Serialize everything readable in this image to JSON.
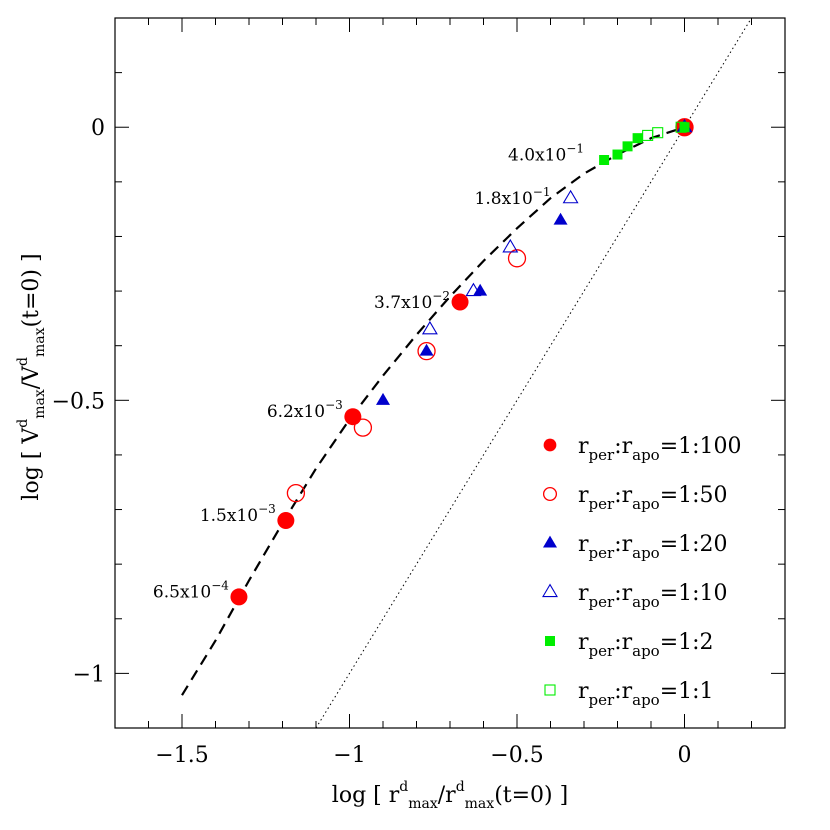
{
  "chart_data": {
    "type": "scatter",
    "x_axis": {
      "label_parts": [
        "log [ r",
        "d",
        "max",
        "/r",
        "d",
        "max",
        "(t=0) ]"
      ],
      "range": [
        -1.7,
        0.3
      ],
      "ticks": [
        -1.5,
        -1,
        -0.5,
        0
      ],
      "tick_labels": [
        "−1.5",
        "−1",
        "−0.5",
        "0"
      ],
      "minor_step": 0.1
    },
    "y_axis": {
      "label_parts": [
        "log [ V",
        "d",
        "max",
        "/V",
        "d",
        "max",
        "(t=0) ]"
      ],
      "range": [
        -1.1,
        0.2
      ],
      "ticks": [
        0,
        -0.5,
        -1
      ],
      "tick_labels": [
        "0",
        "−0.5",
        "−1"
      ],
      "minor_step": 0.1
    },
    "grid": false,
    "legend_position": "bottom-right",
    "series": [
      {
        "name": "r_per:r_apo=1:100",
        "legend_parts": [
          "r",
          "per",
          ":r",
          "apo",
          "=1:100"
        ],
        "marker": "circle",
        "filled": true,
        "color": "#ff0000",
        "x": [
          -1.33,
          -1.19,
          -0.99,
          -0.67,
          0.0
        ],
        "y": [
          -0.86,
          -0.72,
          -0.53,
          -0.32,
          0.0
        ]
      },
      {
        "name": "r_per:r_apo=1:50",
        "legend_parts": [
          "r",
          "per",
          ":r",
          "apo",
          "=1:50"
        ],
        "marker": "circle",
        "filled": false,
        "color": "#ff0000",
        "x": [
          -1.16,
          -0.96,
          -0.77,
          -0.5,
          0.0
        ],
        "y": [
          -0.67,
          -0.55,
          -0.41,
          -0.24,
          0.0
        ]
      },
      {
        "name": "r_per:r_apo=1:20",
        "legend_parts": [
          "r",
          "per",
          ":r",
          "apo",
          "=1:20"
        ],
        "marker": "triangle",
        "filled": true,
        "color": "#0000cc",
        "x": [
          -0.9,
          -0.77,
          -0.61,
          -0.37,
          0.0
        ],
        "y": [
          -0.5,
          -0.41,
          -0.3,
          -0.17,
          0.0
        ]
      },
      {
        "name": "r_per:r_apo=1:10",
        "legend_parts": [
          "r",
          "per",
          ":r",
          "apo",
          "=1:10"
        ],
        "marker": "triangle",
        "filled": false,
        "color": "#0000cc",
        "x": [
          -0.76,
          -0.63,
          -0.52,
          -0.34,
          0.0
        ],
        "y": [
          -0.37,
          -0.3,
          -0.22,
          -0.13,
          0.0
        ]
      },
      {
        "name": "r_per:r_apo=1:2",
        "legend_parts": [
          "r",
          "per",
          ":r",
          "apo",
          "=1:2"
        ],
        "marker": "square",
        "filled": true,
        "color": "#00ee00",
        "x": [
          -0.24,
          -0.2,
          -0.17,
          -0.14,
          0.0
        ],
        "y": [
          -0.06,
          -0.05,
          -0.035,
          -0.02,
          0.0
        ]
      },
      {
        "name": "r_per:r_apo=1:1",
        "legend_parts": [
          "r",
          "per",
          ":r",
          "apo",
          "=1:1"
        ],
        "marker": "square",
        "filled": false,
        "color": "#00ee00",
        "x": [
          -0.11,
          -0.08,
          -0.01
        ],
        "y": [
          -0.015,
          -0.01,
          0.0
        ]
      }
    ],
    "fit_curve": {
      "style": "dashed",
      "x": [
        -1.5,
        -1.4,
        -1.3,
        -1.2,
        -1.1,
        -1.0,
        -0.9,
        -0.8,
        -0.7,
        -0.6,
        -0.5,
        -0.4,
        -0.3,
        -0.2,
        -0.1,
        0.0
      ],
      "y": [
        -1.04,
        -0.94,
        -0.83,
        -0.725,
        -0.625,
        -0.535,
        -0.455,
        -0.38,
        -0.31,
        -0.245,
        -0.185,
        -0.13,
        -0.085,
        -0.05,
        -0.02,
        0.0
      ]
    },
    "reference_line": {
      "style": "dotted",
      "x": [
        -1.1,
        0.2
      ],
      "y": [
        -1.1,
        0.2
      ]
    },
    "annotations": [
      {
        "mantissa": "4.0x10",
        "exponent": "−1",
        "x": -0.3,
        "y": -0.05
      },
      {
        "mantissa": "1.8x10",
        "exponent": "−1",
        "x": -0.4,
        "y": -0.13
      },
      {
        "mantissa": "3.7x10",
        "exponent": "−2",
        "x": -0.7,
        "y": -0.32
      },
      {
        "mantissa": "6.2x10",
        "exponent": "−3",
        "x": -1.02,
        "y": -0.52
      },
      {
        "mantissa": "1.5x10",
        "exponent": "−3",
        "x": -1.22,
        "y": -0.71
      },
      {
        "mantissa": "6.5x10",
        "exponent": "−4",
        "x": -1.36,
        "y": -0.85
      }
    ]
  }
}
